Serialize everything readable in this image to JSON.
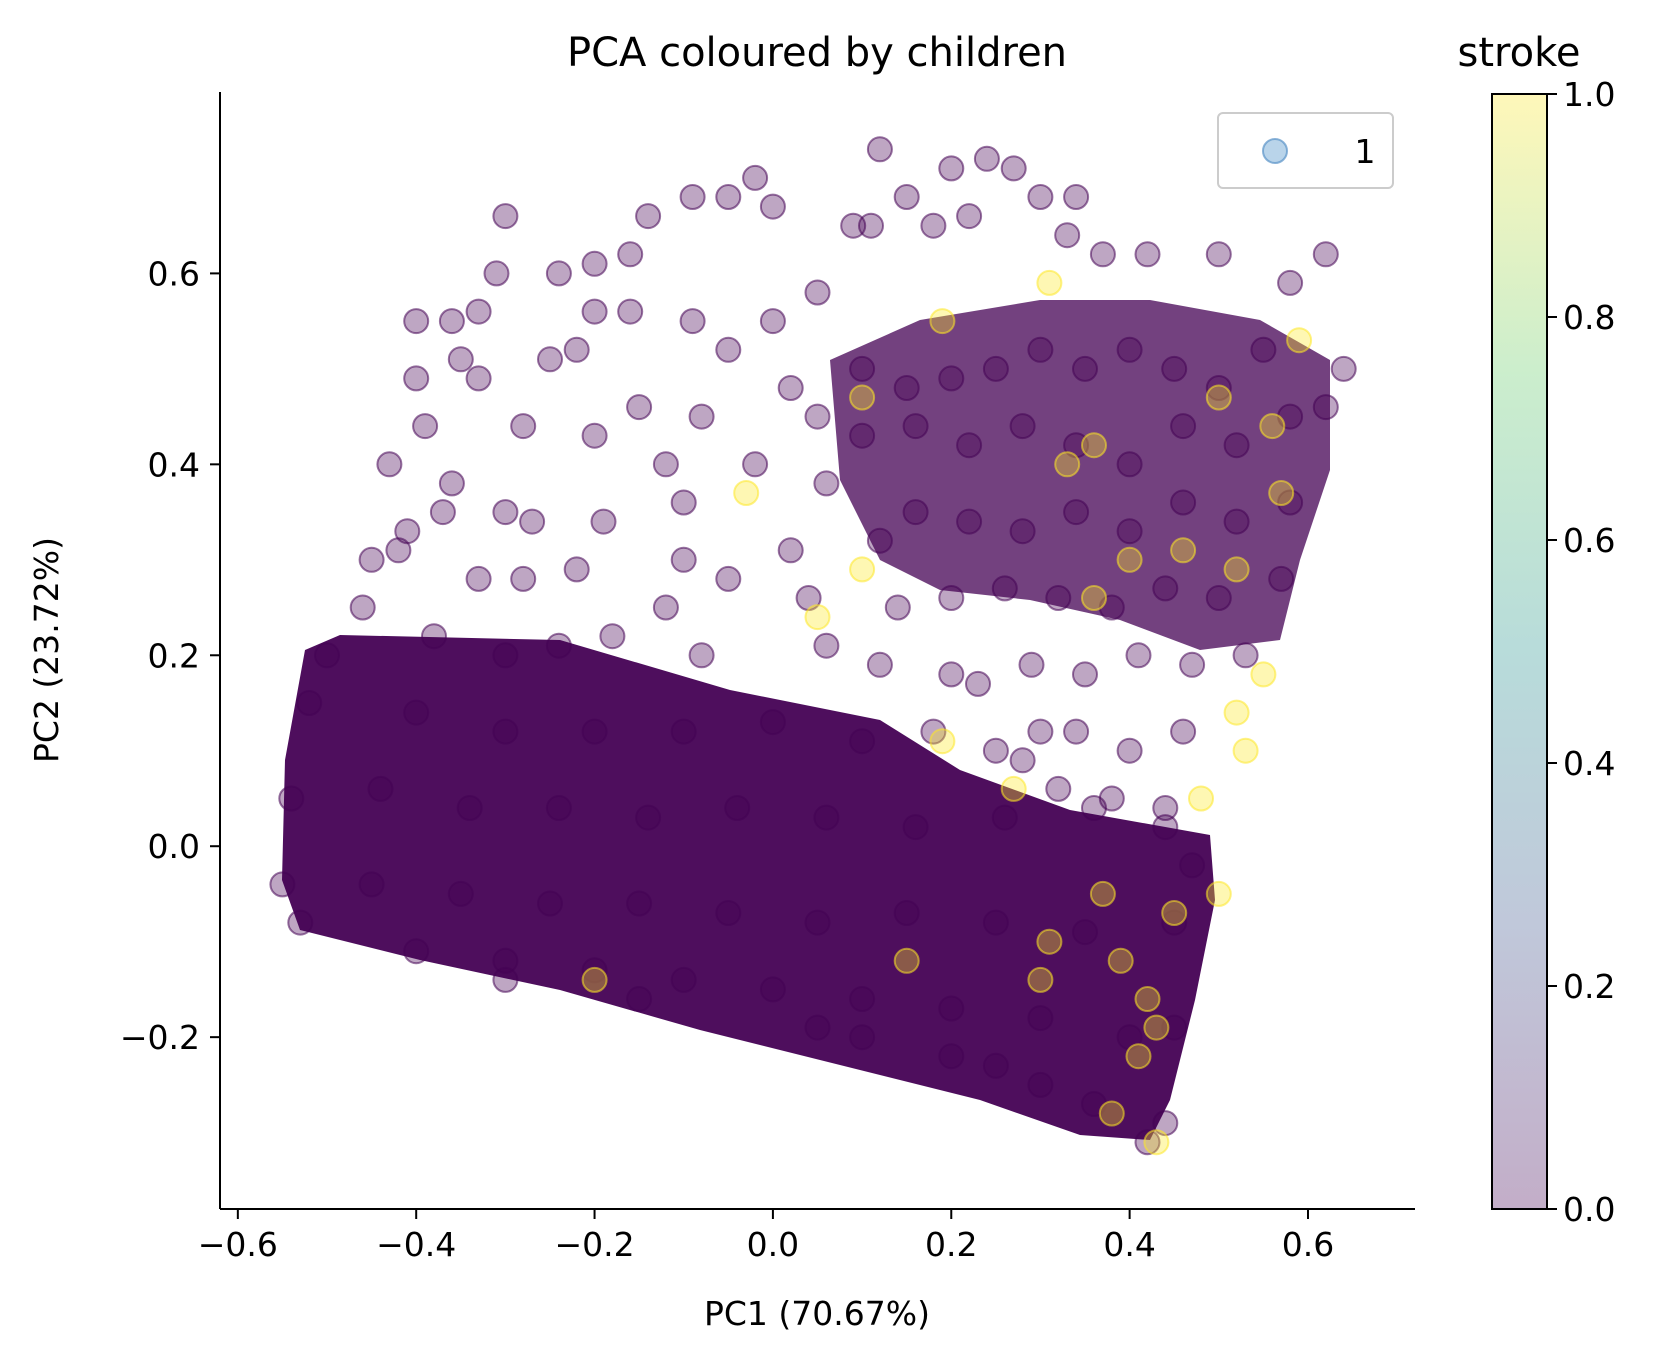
{
  "chart_data": {
    "type": "scatter",
    "title": "PCA coloured by children",
    "xlabel": "PC1 (70.67%)",
    "ylabel": "PC2 (23.72%)",
    "xlim": [
      -0.62,
      0.72
    ],
    "ylim": [
      -0.38,
      0.79
    ],
    "xticks": [
      {
        "value": -0.6,
        "label": "−0.6"
      },
      {
        "value": -0.4,
        "label": "−0.4"
      },
      {
        "value": -0.2,
        "label": "−0.2"
      },
      {
        "value": 0.0,
        "label": "0.0"
      },
      {
        "value": 0.2,
        "label": "0.2"
      },
      {
        "value": 0.4,
        "label": "0.4"
      },
      {
        "value": 0.6,
        "label": "0.6"
      }
    ],
    "yticks": [
      {
        "value": -0.2,
        "label": "−0.2"
      },
      {
        "value": 0.0,
        "label": "0.0"
      },
      {
        "value": 0.2,
        "label": "0.2"
      },
      {
        "value": 0.4,
        "label": "0.4"
      },
      {
        "value": 0.6,
        "label": "0.6"
      }
    ],
    "grid": false,
    "legend": {
      "position": "top-right",
      "entries": [
        {
          "label": "1",
          "color": "#7fb0d9"
        }
      ]
    },
    "colorbar": {
      "title": "stroke",
      "range": [
        0.0,
        1.0
      ],
      "ticks": [
        {
          "value": 0.0,
          "label": "0.0"
        },
        {
          "value": 0.2,
          "label": "0.2"
        },
        {
          "value": 0.4,
          "label": "0.4"
        },
        {
          "value": 0.6,
          "label": "0.6"
        },
        {
          "value": 0.8,
          "label": "0.8"
        },
        {
          "value": 1.0,
          "label": "1.0"
        }
      ],
      "colormap": [
        "#440154",
        "#3b528b",
        "#21918c",
        "#5ec962",
        "#fde725"
      ]
    },
    "marker_alpha": 0.3,
    "colors": {
      "stroke_0": "#440154",
      "stroke_1": "#fde725"
    },
    "series": [
      {
        "stroke": 0,
        "points": [
          [
            0.12,
            0.73
          ],
          [
            -0.02,
            0.7
          ],
          [
            0.24,
            0.72
          ],
          [
            0.2,
            0.71
          ],
          [
            0.27,
            0.71
          ],
          [
            -0.09,
            0.68
          ],
          [
            -0.05,
            0.68
          ],
          [
            0.34,
            0.68
          ],
          [
            0.3,
            0.68
          ],
          [
            0.15,
            0.68
          ],
          [
            -0.14,
            0.66
          ],
          [
            -0.3,
            0.66
          ],
          [
            0.0,
            0.67
          ],
          [
            0.22,
            0.66
          ],
          [
            0.11,
            0.65
          ],
          [
            0.09,
            0.65
          ],
          [
            0.18,
            0.65
          ],
          [
            0.33,
            0.64
          ],
          [
            0.62,
            0.62
          ],
          [
            0.5,
            0.62
          ],
          [
            -0.16,
            0.62
          ],
          [
            -0.2,
            0.61
          ],
          [
            0.37,
            0.62
          ],
          [
            0.42,
            0.62
          ],
          [
            -0.31,
            0.6
          ],
          [
            -0.24,
            0.6
          ],
          [
            0.58,
            0.59
          ],
          [
            -0.33,
            0.56
          ],
          [
            -0.2,
            0.56
          ],
          [
            -0.16,
            0.56
          ],
          [
            -0.4,
            0.55
          ],
          [
            -0.36,
            0.55
          ],
          [
            -0.09,
            0.55
          ],
          [
            -0.25,
            0.51
          ],
          [
            -0.35,
            0.51
          ],
          [
            -0.33,
            0.49
          ],
          [
            -0.4,
            0.49
          ],
          [
            -0.22,
            0.52
          ],
          [
            0.64,
            0.5
          ],
          [
            0.62,
            0.46
          ],
          [
            -0.39,
            0.44
          ],
          [
            -0.28,
            0.44
          ],
          [
            -0.2,
            0.43
          ],
          [
            -0.43,
            0.4
          ],
          [
            -0.36,
            0.38
          ],
          [
            -0.3,
            0.35
          ],
          [
            -0.37,
            0.35
          ],
          [
            -0.41,
            0.33
          ],
          [
            -0.27,
            0.34
          ],
          [
            -0.19,
            0.34
          ],
          [
            -0.45,
            0.3
          ],
          [
            -0.42,
            0.31
          ],
          [
            -0.33,
            0.28
          ],
          [
            -0.28,
            0.28
          ],
          [
            -0.22,
            0.29
          ],
          [
            -0.1,
            0.3
          ],
          [
            0.02,
            0.31
          ],
          [
            -0.12,
            0.25
          ],
          [
            -0.05,
            0.28
          ],
          [
            0.04,
            0.26
          ],
          [
            -0.5,
            0.2
          ],
          [
            -0.46,
            0.25
          ],
          [
            -0.38,
            0.22
          ],
          [
            -0.3,
            0.2
          ],
          [
            -0.24,
            0.21
          ],
          [
            -0.18,
            0.22
          ],
          [
            -0.08,
            0.2
          ],
          [
            0.06,
            0.21
          ],
          [
            0.12,
            0.19
          ],
          [
            0.2,
            0.18
          ],
          [
            -0.52,
            0.15
          ],
          [
            -0.4,
            0.14
          ],
          [
            -0.3,
            0.12
          ],
          [
            -0.2,
            0.12
          ],
          [
            -0.1,
            0.12
          ],
          [
            0.0,
            0.13
          ],
          [
            0.1,
            0.11
          ],
          [
            0.18,
            0.12
          ],
          [
            0.25,
            0.1
          ],
          [
            0.3,
            0.12
          ],
          [
            -0.54,
            0.05
          ],
          [
            -0.44,
            0.06
          ],
          [
            -0.34,
            0.04
          ],
          [
            -0.24,
            0.04
          ],
          [
            -0.14,
            0.03
          ],
          [
            -0.04,
            0.04
          ],
          [
            0.06,
            0.03
          ],
          [
            0.16,
            0.02
          ],
          [
            0.26,
            0.03
          ],
          [
            0.36,
            0.04
          ],
          [
            0.44,
            0.02
          ],
          [
            0.47,
            -0.02
          ],
          [
            -0.55,
            -0.04
          ],
          [
            -0.45,
            -0.04
          ],
          [
            -0.35,
            -0.05
          ],
          [
            -0.25,
            -0.06
          ],
          [
            -0.15,
            -0.06
          ],
          [
            -0.05,
            -0.07
          ],
          [
            0.05,
            -0.08
          ],
          [
            0.15,
            -0.07
          ],
          [
            0.25,
            -0.08
          ],
          [
            0.35,
            -0.09
          ],
          [
            0.45,
            -0.08
          ],
          [
            -0.53,
            -0.08
          ],
          [
            -0.4,
            -0.11
          ],
          [
            -0.3,
            -0.12
          ],
          [
            -0.2,
            -0.13
          ],
          [
            -0.1,
            -0.14
          ],
          [
            0.0,
            -0.15
          ],
          [
            0.1,
            -0.16
          ],
          [
            0.2,
            -0.17
          ],
          [
            0.3,
            -0.18
          ],
          [
            0.4,
            -0.2
          ],
          [
            0.45,
            -0.19
          ],
          [
            -0.3,
            -0.14
          ],
          [
            -0.15,
            -0.16
          ],
          [
            0.05,
            -0.19
          ],
          [
            0.2,
            -0.22
          ],
          [
            0.3,
            -0.25
          ],
          [
            0.38,
            -0.28
          ],
          [
            0.42,
            -0.31
          ],
          [
            0.44,
            -0.29
          ],
          [
            0.36,
            -0.27
          ],
          [
            0.25,
            -0.23
          ],
          [
            0.1,
            -0.2
          ],
          [
            0.55,
            0.52
          ],
          [
            0.5,
            0.48
          ],
          [
            0.45,
            0.5
          ],
          [
            0.4,
            0.52
          ],
          [
            0.35,
            0.5
          ],
          [
            0.3,
            0.52
          ],
          [
            0.25,
            0.5
          ],
          [
            0.2,
            0.49
          ],
          [
            0.15,
            0.48
          ],
          [
            0.1,
            0.5
          ],
          [
            0.58,
            0.45
          ],
          [
            0.52,
            0.42
          ],
          [
            0.46,
            0.44
          ],
          [
            0.4,
            0.4
          ],
          [
            0.34,
            0.42
          ],
          [
            0.28,
            0.44
          ],
          [
            0.22,
            0.42
          ],
          [
            0.16,
            0.44
          ],
          [
            0.1,
            0.43
          ],
          [
            0.05,
            0.45
          ],
          [
            0.58,
            0.36
          ],
          [
            0.52,
            0.34
          ],
          [
            0.46,
            0.36
          ],
          [
            0.4,
            0.33
          ],
          [
            0.34,
            0.35
          ],
          [
            0.28,
            0.33
          ],
          [
            0.22,
            0.34
          ],
          [
            0.16,
            0.35
          ],
          [
            0.12,
            0.32
          ],
          [
            0.57,
            0.28
          ],
          [
            0.5,
            0.26
          ],
          [
            0.44,
            0.27
          ],
          [
            0.38,
            0.25
          ],
          [
            0.32,
            0.26
          ],
          [
            0.26,
            0.27
          ],
          [
            0.2,
            0.26
          ],
          [
            0.14,
            0.25
          ],
          [
            0.53,
            0.2
          ],
          [
            0.47,
            0.19
          ],
          [
            0.41,
            0.2
          ],
          [
            0.35,
            0.18
          ],
          [
            0.29,
            0.19
          ],
          [
            0.23,
            0.17
          ],
          [
            0.46,
            0.12
          ],
          [
            0.4,
            0.1
          ],
          [
            0.34,
            0.12
          ],
          [
            0.28,
            0.09
          ],
          [
            0.44,
            0.04
          ],
          [
            0.38,
            0.05
          ],
          [
            0.32,
            0.06
          ],
          [
            0.0,
            0.55
          ],
          [
            0.05,
            0.58
          ],
          [
            -0.05,
            0.52
          ],
          [
            0.02,
            0.48
          ],
          [
            -0.08,
            0.45
          ],
          [
            -0.02,
            0.4
          ],
          [
            0.06,
            0.38
          ],
          [
            -0.12,
            0.4
          ],
          [
            -0.15,
            0.46
          ],
          [
            -0.1,
            0.36
          ]
        ]
      },
      {
        "stroke": 1,
        "points": [
          [
            0.31,
            0.59
          ],
          [
            0.59,
            0.53
          ],
          [
            0.19,
            0.55
          ],
          [
            0.5,
            0.47
          ],
          [
            0.1,
            0.47
          ],
          [
            0.33,
            0.4
          ],
          [
            0.57,
            0.37
          ],
          [
            -0.03,
            0.37
          ],
          [
            0.46,
            0.31
          ],
          [
            0.52,
            0.29
          ],
          [
            0.4,
            0.3
          ],
          [
            0.36,
            0.26
          ],
          [
            0.1,
            0.29
          ],
          [
            0.05,
            0.24
          ],
          [
            0.55,
            0.18
          ],
          [
            0.52,
            0.14
          ],
          [
            0.53,
            0.1
          ],
          [
            0.48,
            0.05
          ],
          [
            0.27,
            0.06
          ],
          [
            0.5,
            -0.05
          ],
          [
            0.37,
            -0.05
          ],
          [
            0.45,
            -0.07
          ],
          [
            0.31,
            -0.1
          ],
          [
            0.39,
            -0.12
          ],
          [
            0.15,
            -0.12
          ],
          [
            0.3,
            -0.14
          ],
          [
            0.42,
            -0.16
          ],
          [
            0.43,
            -0.19
          ],
          [
            0.41,
            -0.22
          ],
          [
            0.38,
            -0.28
          ],
          [
            0.43,
            -0.31
          ],
          [
            -0.2,
            -0.14
          ],
          [
            0.19,
            0.11
          ],
          [
            0.36,
            0.42
          ],
          [
            0.56,
            0.44
          ]
        ]
      }
    ]
  }
}
